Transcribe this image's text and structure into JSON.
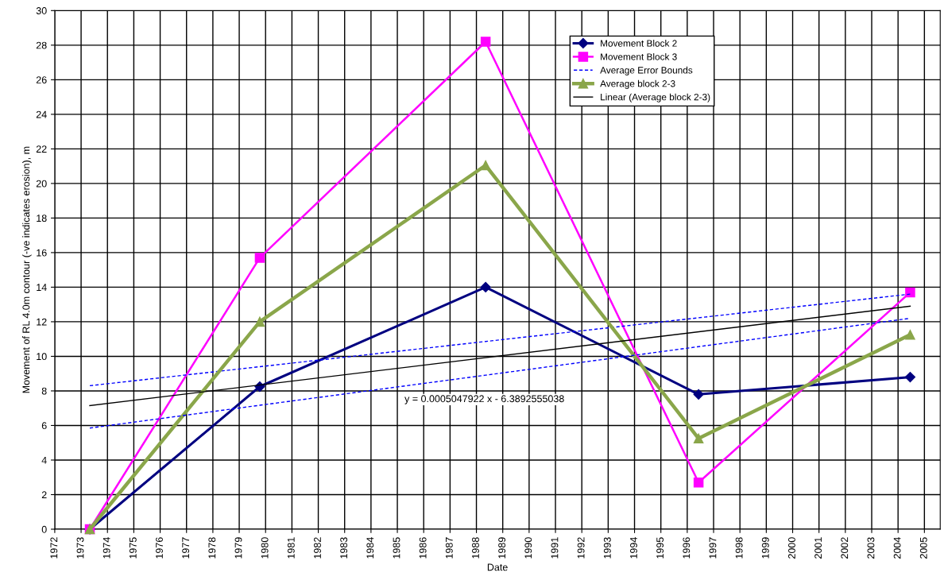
{
  "chart_data": {
    "type": "line",
    "xlabel": "Date",
    "ylabel": "Movement of RL 4.0m contour (-ve indicates erosion), m",
    "x": [
      1973.33,
      1979.78,
      1988.35,
      1996.43,
      2004.46
    ],
    "xlim": [
      1972,
      2005.6
    ],
    "xticks": [
      1972,
      1973,
      1974,
      1975,
      1976,
      1977,
      1978,
      1979,
      1980,
      1981,
      1982,
      1983,
      1984,
      1985,
      1986,
      1987,
      1988,
      1989,
      1990,
      1991,
      1992,
      1993,
      1994,
      1995,
      1996,
      1997,
      1998,
      1999,
      2000,
      2001,
      2002,
      2003,
      2004,
      2005
    ],
    "ylim": [
      0,
      30
    ],
    "yticks": [
      0,
      2,
      4,
      6,
      8,
      10,
      12,
      14,
      16,
      18,
      20,
      22,
      24,
      26,
      28,
      30
    ],
    "grid": true,
    "legend": "top right",
    "series": [
      {
        "name": "Movement Block 2",
        "color": "#000080",
        "values": [
          0,
          8.25,
          14,
          7.8,
          8.8
        ],
        "marker": "diamond",
        "line_style": "solid"
      },
      {
        "name": "Movement Block 3",
        "color": "#ff00ff",
        "values": [
          0,
          15.7,
          28.2,
          2.7,
          13.7
        ],
        "marker": "square",
        "line_style": "solid"
      },
      {
        "name": "Average Error Bounds",
        "color": "#0000ff",
        "values": [
          8.3,
          9.4,
          10.86,
          12.23,
          13.6
        ],
        "marker": "none",
        "line_style": "dashed"
      },
      {
        "name": "Average block 2-3",
        "color": "#8aa64a",
        "values": [
          0,
          12,
          21.05,
          5.25,
          11.25
        ],
        "marker": "triangle",
        "line_style": "solid"
      },
      {
        "name": "Linear (Average block 2-3)",
        "color": "#000000",
        "x": [
          1973.33,
          2004.46
        ],
        "values": [
          7.15,
          12.9
        ],
        "marker": "none",
        "line_style": "solid"
      },
      {
        "color": "#0000ff",
        "values": [
          5.85,
          7.17,
          8.91,
          10.56,
          12.2
        ],
        "marker": "none",
        "line_style": "dashed"
      }
    ],
    "annotations": [
      "y = 0.0005047922 x - 6.3892555038"
    ]
  }
}
